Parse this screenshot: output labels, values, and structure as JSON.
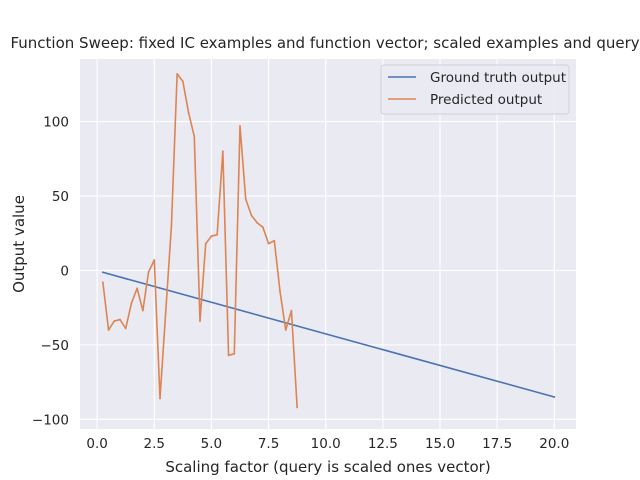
{
  "chart_data": {
    "type": "line",
    "title": "Function Sweep: fixed IC examples and function vector; scaled examples and query)",
    "xlabel": "Scaling factor (query is scaled ones vector)",
    "ylabel": "Output value",
    "xlim": [
      -0.75,
      20.95
    ],
    "ylim": [
      -106.5,
      142.0
    ],
    "xticks": [
      0.0,
      2.5,
      5.0,
      7.5,
      10.0,
      12.5,
      15.0,
      17.5,
      20.0
    ],
    "xtick_labels": [
      "0.0",
      "2.5",
      "5.0",
      "7.5",
      "10.0",
      "12.5",
      "15.0",
      "17.5",
      "20.0"
    ],
    "yticks": [
      -100,
      -50,
      0,
      50,
      100
    ],
    "ytick_labels": [
      "−100",
      "−50",
      "0",
      "50",
      "100"
    ],
    "grid": true,
    "legend_position": "top-right",
    "background": "#eaeaf2",
    "series": [
      {
        "name": "Ground truth output",
        "color": "#4c72b0",
        "x": [
          0.25,
          20.0
        ],
        "y": [
          -1.25,
          -85.0
        ]
      },
      {
        "name": "Predicted output",
        "color": "#dd8452",
        "x": [
          0.25,
          0.5,
          0.75,
          1.0,
          1.25,
          1.5,
          1.75,
          2.0,
          2.25,
          2.5,
          2.75,
          3.0,
          3.25,
          3.5,
          3.75,
          4.0,
          4.25,
          4.5,
          4.75,
          5.0,
          5.25,
          5.5,
          5.75,
          6.0,
          6.25,
          6.5,
          6.75,
          7.0,
          7.25,
          7.5,
          7.75,
          8.0,
          8.25,
          8.5,
          8.75
        ],
        "y": [
          -8,
          -40,
          -34,
          -33,
          -39,
          -22,
          -12,
          -27,
          -1,
          7,
          -86,
          -28,
          30,
          132,
          127,
          106,
          90,
          -34,
          18,
          23,
          24,
          80,
          -57,
          -56,
          97,
          48,
          37,
          32,
          29,
          18,
          20,
          -14,
          -40,
          -27,
          -92
        ]
      }
    ]
  }
}
